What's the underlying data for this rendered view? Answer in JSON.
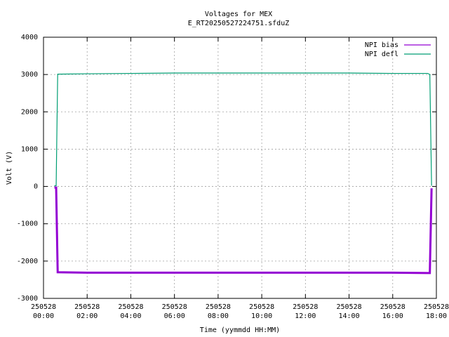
{
  "chart_data": {
    "type": "line",
    "title": "Voltages for MEX",
    "subtitle": "E_RT20250527224751.sfduZ",
    "x_label": "Time (yymmdd HH:MM)",
    "y_label": "Volt (V)",
    "x": [
      0.5,
      0.58,
      0.65,
      2,
      4,
      6,
      8,
      10,
      12,
      14,
      16,
      17.6,
      17.7,
      17.78
    ],
    "series": [
      {
        "name": "NPI bias",
        "color": "#9400d3",
        "values": [
          -30,
          -30,
          -2300,
          -2310,
          -2310,
          -2310,
          -2310,
          -2310,
          -2310,
          -2310,
          -2310,
          -2320,
          -2320,
          -50
        ]
      },
      {
        "name": "NPI defl",
        "color": "#009e73",
        "values": [
          20,
          20,
          3010,
          3020,
          3030,
          3040,
          3040,
          3040,
          3040,
          3040,
          3030,
          3030,
          3000,
          20
        ]
      }
    ],
    "xlim": [
      0,
      18
    ],
    "xticks": [
      {
        "value": 0,
        "label": "250528 00:00"
      },
      {
        "value": 2,
        "label": "250528 02:00"
      },
      {
        "value": 4,
        "label": "250528 04:00"
      },
      {
        "value": 6,
        "label": "250528 06:00"
      },
      {
        "value": 8,
        "label": "250528 08:00"
      },
      {
        "value": 10,
        "label": "250528 10:00"
      },
      {
        "value": 12,
        "label": "250528 12:00"
      },
      {
        "value": 14,
        "label": "250528 14:00"
      },
      {
        "value": 16,
        "label": "250528 16:00"
      },
      {
        "value": 18,
        "label": "250528 18:00"
      }
    ],
    "ylim": [
      -3000,
      4000
    ],
    "yticks": [
      -3000,
      -2000,
      -1000,
      0,
      1000,
      2000,
      3000,
      4000
    ],
    "grid": true,
    "legend": "top-right"
  }
}
